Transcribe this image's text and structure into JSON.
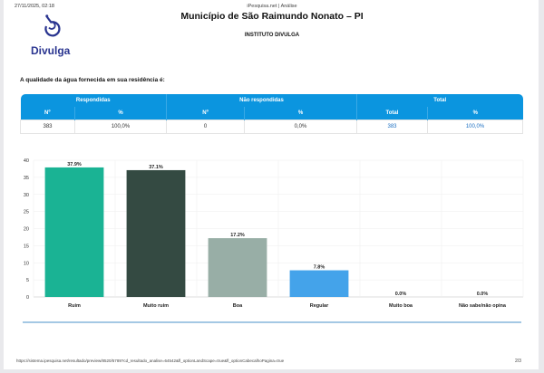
{
  "header": {
    "datetime": "27/11/2025, 02:18",
    "site": "iPesquisa.net | Análise",
    "title": "Município de São Raimundo Nonato – PI",
    "institute": "INSTITUTO DIVULGA",
    "logo_text": "Divulga"
  },
  "question": "A qualidade da água fornecida em sua residência é:",
  "table": {
    "groups": [
      "Respondidas",
      "Não respondidas",
      "Total"
    ],
    "columns": [
      "Nº",
      "%",
      "Nº",
      "%",
      "Total",
      "%"
    ],
    "row": [
      "383",
      "100,0%",
      "0",
      "0,0%",
      "383",
      "100,0%"
    ]
  },
  "chart_data": {
    "type": "bar",
    "categories": [
      "Ruim",
      "Muito ruim",
      "Boa",
      "Regular",
      "Muito boa",
      "Não sabe/não opina"
    ],
    "values": [
      37.9,
      37.1,
      17.2,
      7.8,
      0.0,
      0.0
    ],
    "labels": [
      "37.9%",
      "37.1%",
      "17.2%",
      "7.8%",
      "0.0%",
      "0.0%"
    ],
    "colors": [
      "#1ab394",
      "#344a42",
      "#98aea6",
      "#44a3ea",
      "#cccccc",
      "#cccccc"
    ],
    "yticks": [
      0,
      5,
      10,
      15,
      20,
      25,
      30,
      35,
      40
    ],
    "ylim": [
      0,
      40
    ],
    "grid": true
  },
  "footer": {
    "url": "https://sistema.ipesquisa.net/resultado/preview/8520/5789?cd_resultado_analise=64542&fl_optionLandScape=true&fl_optionCabecalhoPagina=true",
    "page": "2/3"
  }
}
